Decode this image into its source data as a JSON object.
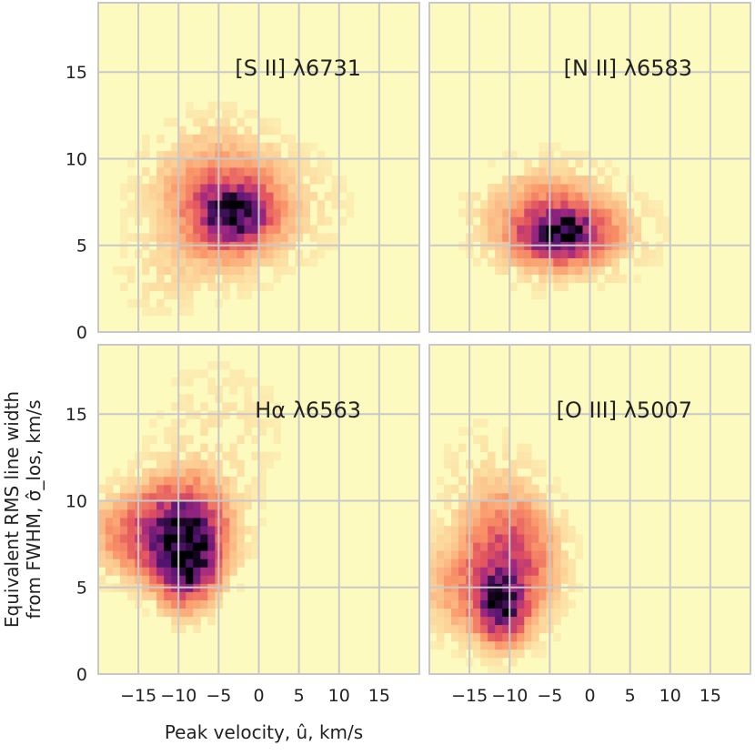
{
  "chart_data": {
    "type": "heatmap",
    "layout": "2x2 grid, shared axes",
    "xlabel": "Peak velocity, û, km/s",
    "ylabel_line1": "Equivalent RMS line width",
    "ylabel_line2": "from FWHM, σ̂_los, km/s",
    "xlim": [
      -20,
      20
    ],
    "ylim": [
      0,
      19
    ],
    "xticks": [
      -15,
      -10,
      -5,
      0,
      5,
      10,
      15
    ],
    "xtick_labels": [
      "−15",
      "−10",
      "−5",
      "0",
      "5",
      "10",
      "15"
    ],
    "yticks": [
      0,
      5,
      10,
      15
    ],
    "ytick_labels": [
      "0",
      "5",
      "10",
      "15"
    ],
    "grid": true,
    "colormap": "magma_r",
    "panels": [
      {
        "name": "SII",
        "label": "[S II] λ6731",
        "blobs": [
          {
            "u": -3,
            "s": 6.8,
            "su": 2.8,
            "ss": 1.1,
            "w": 1.0
          },
          {
            "u": -5,
            "s": 7.6,
            "su": 5.0,
            "ss": 2.4,
            "w": 0.35
          },
          {
            "u": -12,
            "s": 3.0,
            "su": 4.0,
            "ss": 1.5,
            "w": 0.05
          },
          {
            "u": 4,
            "s": 7.2,
            "su": 5.0,
            "ss": 2.0,
            "w": 0.06
          }
        ]
      },
      {
        "name": "NII",
        "label": "[N II] λ6583",
        "blobs": [
          {
            "u": -3.5,
            "s": 5.7,
            "su": 3.0,
            "ss": 0.9,
            "w": 1.0
          },
          {
            "u": -5,
            "s": 6.4,
            "su": 5.0,
            "ss": 1.8,
            "w": 0.35
          },
          {
            "u": 2,
            "s": 5.5,
            "su": 5.0,
            "ss": 1.5,
            "w": 0.07
          }
        ]
      },
      {
        "name": "Halpha",
        "label": "Hα λ6563",
        "blobs": [
          {
            "u": -9,
            "s": 6.5,
            "su": 2.2,
            "ss": 1.5,
            "w": 1.0
          },
          {
            "u": -9.5,
            "s": 8.3,
            "su": 3.5,
            "ss": 1.8,
            "w": 0.75
          },
          {
            "u": -14,
            "s": 8.0,
            "su": 4.5,
            "ss": 1.5,
            "w": 0.35
          },
          {
            "u": -5,
            "s": 14.0,
            "su": 6.0,
            "ss": 3.0,
            "w": 0.05
          }
        ]
      },
      {
        "name": "OIII",
        "label": "[O III] λ5007",
        "blobs": [
          {
            "u": -11,
            "s": 4.0,
            "su": 1.8,
            "ss": 1.2,
            "w": 1.0
          },
          {
            "u": -10,
            "s": 6.5,
            "su": 3.5,
            "ss": 2.3,
            "w": 0.55
          },
          {
            "u": -16,
            "s": 5.0,
            "su": 3.5,
            "ss": 1.8,
            "w": 0.2
          },
          {
            "u": -13,
            "s": 11.0,
            "su": 4.0,
            "ss": 2.5,
            "w": 0.06
          }
        ]
      }
    ]
  }
}
